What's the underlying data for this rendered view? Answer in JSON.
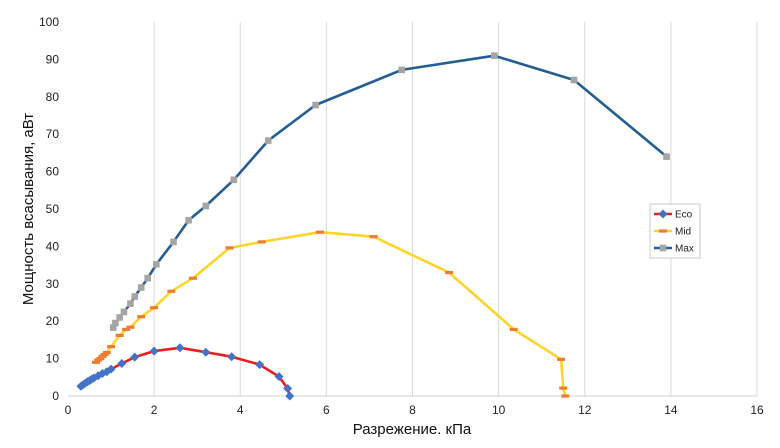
{
  "chart_data": {
    "type": "line",
    "xlabel": "Разрежение. кПа",
    "ylabel": "Мощность всасывания, аВт",
    "xlim": [
      0,
      16
    ],
    "ylim": [
      0,
      100
    ],
    "xticks": [
      "0",
      "2",
      "4",
      "6",
      "8",
      "10",
      "12",
      "14",
      "16"
    ],
    "yticks": [
      "0",
      "10",
      "20",
      "30",
      "40",
      "50",
      "60",
      "70",
      "80",
      "90",
      "100"
    ],
    "grid": "vertical",
    "legend_position": "right",
    "series": [
      {
        "name": "Eco",
        "color": "#e8201f",
        "marker": "diamond",
        "marker_color": "#4472c4",
        "points": [
          [
            0.3,
            2.6
          ],
          [
            0.35,
            3.0
          ],
          [
            0.4,
            3.4
          ],
          [
            0.45,
            3.8
          ],
          [
            0.5,
            4.1
          ],
          [
            0.55,
            4.5
          ],
          [
            0.6,
            4.8
          ],
          [
            0.7,
            5.4
          ],
          [
            0.8,
            6.0
          ],
          [
            0.9,
            6.5
          ],
          [
            1.0,
            7.2
          ],
          [
            1.25,
            8.7
          ],
          [
            1.55,
            10.4
          ],
          [
            2.0,
            12.0
          ],
          [
            2.6,
            12.9
          ],
          [
            3.2,
            11.7
          ],
          [
            3.8,
            10.5
          ],
          [
            4.45,
            8.4
          ],
          [
            4.9,
            5.2
          ],
          [
            5.1,
            2.0
          ],
          [
            5.15,
            0.0
          ]
        ]
      },
      {
        "name": "Mid",
        "color": "#ffd42a",
        "marker": "dash",
        "marker_color": "#ed7d31",
        "points": [
          [
            0.65,
            9.0
          ],
          [
            0.7,
            9.6
          ],
          [
            0.75,
            10.0
          ],
          [
            0.8,
            10.6
          ],
          [
            0.85,
            11.1
          ],
          [
            0.9,
            11.6
          ],
          [
            1.0,
            13.2
          ],
          [
            1.2,
            16.2
          ],
          [
            1.35,
            17.8
          ],
          [
            1.45,
            18.4
          ],
          [
            1.7,
            21.2
          ],
          [
            2.0,
            23.6
          ],
          [
            2.4,
            28.0
          ],
          [
            2.9,
            31.5
          ],
          [
            3.75,
            39.6
          ],
          [
            4.5,
            41.2
          ],
          [
            5.85,
            43.8
          ],
          [
            7.1,
            42.6
          ],
          [
            8.85,
            33.0
          ],
          [
            10.35,
            17.8
          ],
          [
            11.45,
            9.8
          ],
          [
            11.5,
            2.1
          ],
          [
            11.55,
            0.0
          ]
        ]
      },
      {
        "name": "Max",
        "color": "#255e91",
        "marker": "square",
        "marker_color": "#a5a5a5",
        "points": [
          [
            1.05,
            18.3
          ],
          [
            1.1,
            19.5
          ],
          [
            1.2,
            21.0
          ],
          [
            1.3,
            22.5
          ],
          [
            1.45,
            24.7
          ],
          [
            1.55,
            26.6
          ],
          [
            1.7,
            29.0
          ],
          [
            1.85,
            31.5
          ],
          [
            2.05,
            35.2
          ],
          [
            2.45,
            41.2
          ],
          [
            2.8,
            47.0
          ],
          [
            3.2,
            50.8
          ],
          [
            3.85,
            57.8
          ],
          [
            4.65,
            68.3
          ],
          [
            5.75,
            77.8
          ],
          [
            7.75,
            87.2
          ],
          [
            9.9,
            91.0
          ],
          [
            11.75,
            84.5
          ],
          [
            13.9,
            64.0
          ]
        ]
      }
    ]
  }
}
